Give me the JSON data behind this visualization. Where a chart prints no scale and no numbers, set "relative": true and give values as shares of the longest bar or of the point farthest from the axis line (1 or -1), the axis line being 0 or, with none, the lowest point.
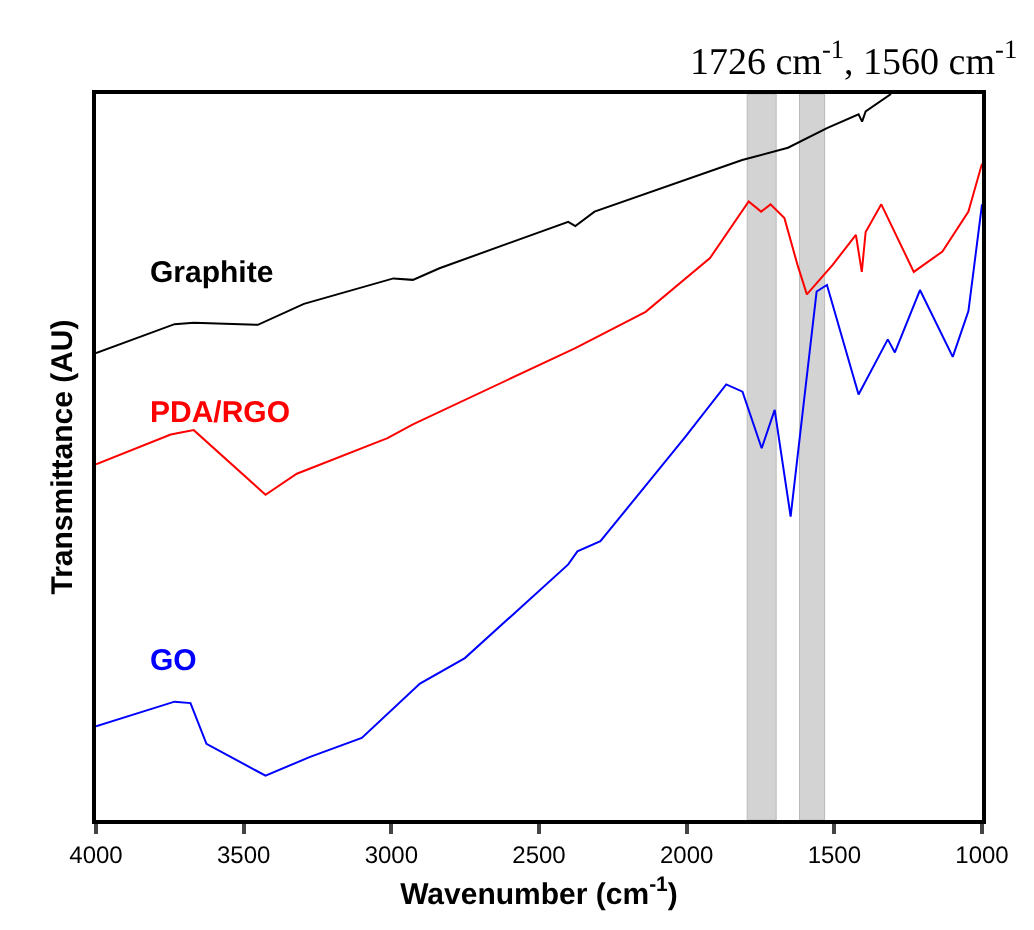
{
  "chart_data": {
    "type": "line",
    "relative": true,
    "xlabel": "Wavenumber (cm$^{-1}$)",
    "ylabel": "Transmittance (AU)",
    "xlim": [
      4000,
      1000
    ],
    "xticks": [
      4000,
      3500,
      3000,
      2500,
      2000,
      1500,
      1000
    ],
    "legend": false,
    "grid": false,
    "annotations": [
      "1726 cm$^{-1}$, 1560 cm$^{-1}$"
    ],
    "bands": [
      {
        "axis": "x",
        "from": 1795,
        "to": 1697,
        "color": "#9e9e9e"
      },
      {
        "axis": "x",
        "from": 1618,
        "to": 1533,
        "color": "#9e9e9e"
      }
    ],
    "series": [
      {
        "name": "Graphite",
        "color": "#000000",
        "x": [
          4000,
          3734,
          3669,
          3452,
          3296,
          2993,
          2927,
          2837,
          2401,
          2377,
          2312,
          1812,
          1657,
          1525,
          1418,
          1406,
          1394,
          1308
        ],
        "values": [
          0.643,
          0.683,
          0.685,
          0.682,
          0.711,
          0.746,
          0.744,
          0.76,
          0.824,
          0.818,
          0.838,
          0.909,
          0.926,
          0.953,
          0.972,
          0.962,
          0.976,
          1.0
        ]
      },
      {
        "name": "PDA/RGO",
        "color": "#ff0000",
        "x": [
          4000,
          3747,
          3669,
          3426,
          3320,
          3013,
          2927,
          2377,
          2139,
          1921,
          1790,
          1748,
          1716,
          1669,
          1625,
          1593,
          1505,
          1427,
          1407,
          1394,
          1341,
          1231,
          1134,
          1046,
          1000
        ],
        "values": [
          0.49,
          0.531,
          0.537,
          0.448,
          0.477,
          0.526,
          0.545,
          0.65,
          0.7,
          0.774,
          0.852,
          0.838,
          0.848,
          0.829,
          0.765,
          0.724,
          0.765,
          0.806,
          0.755,
          0.81,
          0.848,
          0.755,
          0.783,
          0.838,
          0.904
        ]
      },
      {
        "name": "GO",
        "color": "#0000ff",
        "x": [
          4000,
          3734,
          3680,
          3626,
          3426,
          3275,
          3100,
          2903,
          2751,
          2401,
          2370,
          2292,
          2008,
          1866,
          1811,
          1746,
          1702,
          1648,
          1560,
          1525,
          1418,
          1319,
          1295,
          1210,
          1099,
          1046,
          1000
        ],
        "values": [
          0.129,
          0.163,
          0.161,
          0.105,
          0.061,
          0.087,
          0.113,
          0.188,
          0.223,
          0.352,
          0.37,
          0.384,
          0.526,
          0.6,
          0.59,
          0.512,
          0.565,
          0.418,
          0.728,
          0.737,
          0.586,
          0.662,
          0.644,
          0.73,
          0.638,
          0.701,
          0.848
        ]
      }
    ]
  }
}
